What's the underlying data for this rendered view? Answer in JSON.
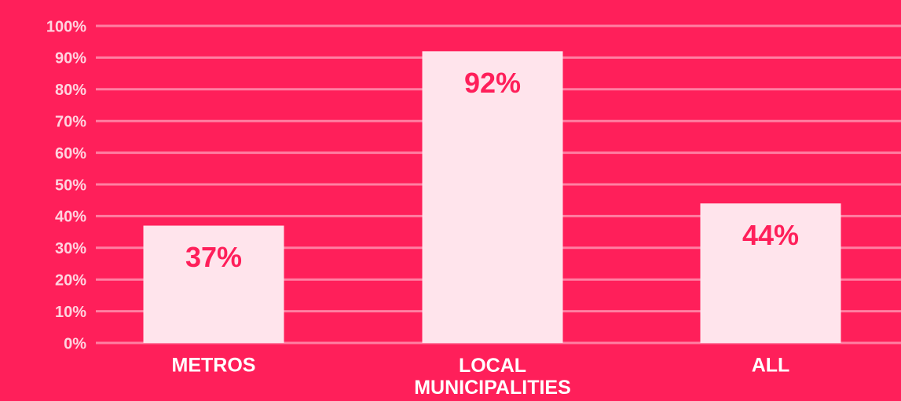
{
  "chart_data": {
    "type": "bar",
    "categories": [
      "METROS",
      "LOCAL MUNICIPALITIES",
      "ALL"
    ],
    "values": [
      37,
      92,
      44
    ],
    "value_labels": [
      "37%",
      "92%",
      "44%"
    ],
    "color": "#ffe4ec",
    "ylim": [
      0,
      100
    ],
    "yticks": [
      {
        "value": 0,
        "label": "0%"
      },
      {
        "value": 10,
        "label": "10%"
      },
      {
        "value": 20,
        "label": "20%"
      },
      {
        "value": 30,
        "label": "30%"
      },
      {
        "value": 40,
        "label": "40%"
      },
      {
        "value": 50,
        "label": "50%"
      },
      {
        "value": 60,
        "label": "60%"
      },
      {
        "value": 70,
        "label": "70%"
      },
      {
        "value": 80,
        "label": "80%"
      },
      {
        "value": 90,
        "label": "90%"
      },
      {
        "value": 100,
        "label": "100%"
      }
    ],
    "grid": true
  }
}
